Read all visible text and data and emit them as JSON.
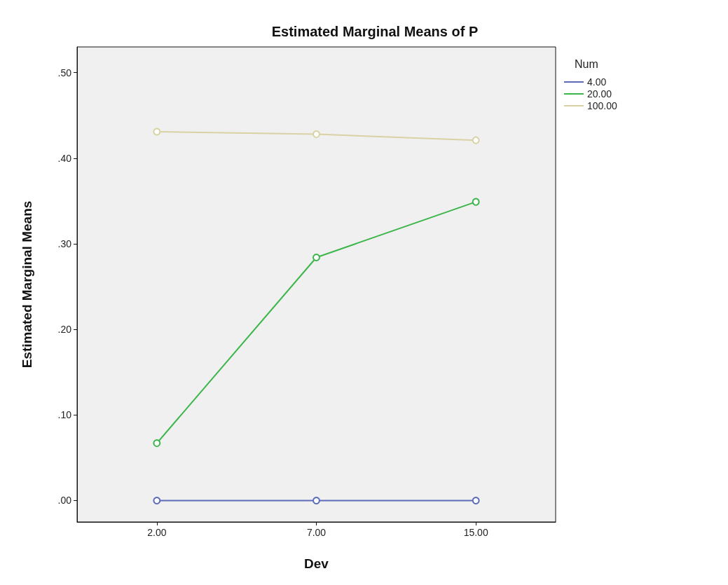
{
  "chart_data": {
    "type": "line",
    "title": "Estimated Marginal Means of P",
    "xlabel": "Dev",
    "ylabel": "Estimated Marginal Means",
    "legend_title": "Num",
    "legend": "top right",
    "marker": "circle",
    "grid": false,
    "categories": [
      "2.00",
      "7.00",
      "15.00"
    ],
    "ylim": [
      -0.025,
      0.53
    ],
    "yticks": [
      {
        "value": 0,
        "label": ".00"
      },
      {
        "value": 0.1,
        "label": ".10"
      },
      {
        "value": 0.2,
        "label": ".20"
      },
      {
        "value": 0.3,
        "label": ".30"
      },
      {
        "value": 0.4,
        "label": ".40"
      },
      {
        "value": 0.5,
        "label": ".50"
      }
    ],
    "series": [
      {
        "name": "4.00",
        "color": "#5b6bb8",
        "values": [
          0,
          0,
          0
        ]
      },
      {
        "name": "20.00",
        "color": "#3cb54a",
        "values": [
          0.067,
          0.284,
          0.349
        ]
      },
      {
        "name": "100.00",
        "color": "#d8d2a4",
        "values": [
          0.431,
          0.428,
          0.421
        ]
      }
    ]
  }
}
